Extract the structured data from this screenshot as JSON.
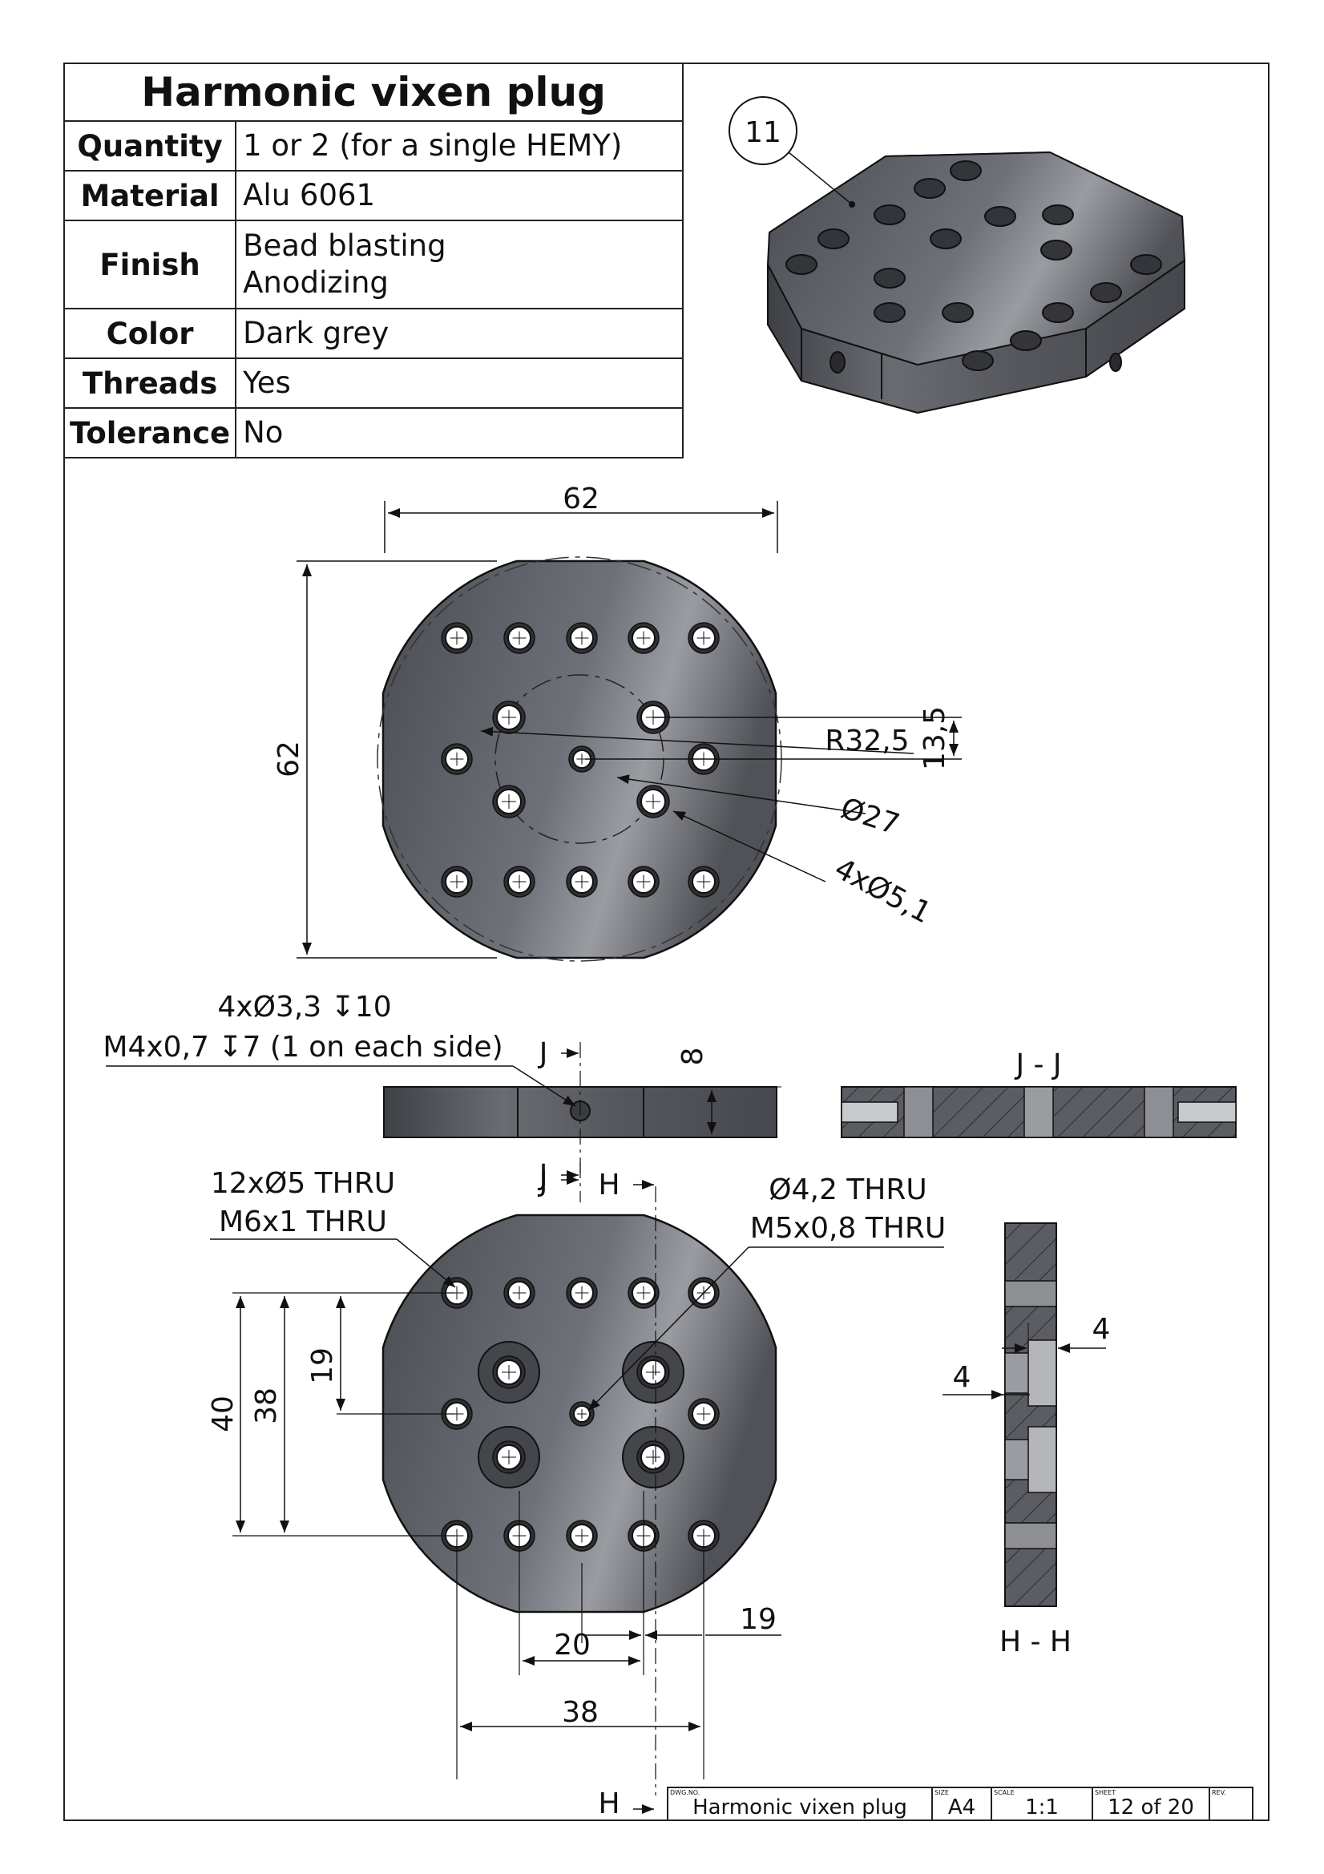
{
  "part": {
    "title": "Harmonic vixen plug",
    "properties": [
      {
        "key": "Quantity",
        "value": "1 or 2 (for a single HEMY)"
      },
      {
        "key": "Material",
        "value": "Alu 6061"
      },
      {
        "key": "Finish",
        "value": "Bead blasting",
        "value2": "Anodizing"
      },
      {
        "key": "Color",
        "value": "Dark grey"
      },
      {
        "key": "Threads",
        "value": "Yes"
      },
      {
        "key": "Tolerance",
        "value": "No"
      }
    ],
    "balloon": "11"
  },
  "top_view": {
    "width": "62",
    "height": "62",
    "radius": "R32,5",
    "offset": "13,5",
    "pcd": "Ø27",
    "holes": "4xØ5,1"
  },
  "side_view": {
    "note_line1": "4xØ3,3 ↧10",
    "note_line2": "M4x0,7 ↧7 (1 on each side)",
    "thickness": "8",
    "section_mark": "J",
    "section_title": "J - J"
  },
  "bottom_view": {
    "note_a1": "12xØ5 THRU",
    "note_a2": "M6x1 THRU",
    "note_b1": "Ø4,2 THRU",
    "note_b2": "M5x0,8 THRU",
    "dim_40": "40",
    "dim_38v": "38",
    "dim_19v": "19",
    "dim_19h": "19",
    "dim_20": "20",
    "dim_38h": "38",
    "section_mark": "H",
    "section_title": "H - H",
    "cb_depth": "4",
    "cb_offset": "4"
  },
  "title_block": {
    "dwg_no_label": "DWG.NO.",
    "dwg_no": "Harmonic vixen plug",
    "size_label": "SIZE",
    "size": "A4",
    "scale_label": "SCALE",
    "scale": "1:1",
    "sheet_label": "SHEET",
    "sheet": "12 of 20",
    "rev_label": "REV."
  }
}
